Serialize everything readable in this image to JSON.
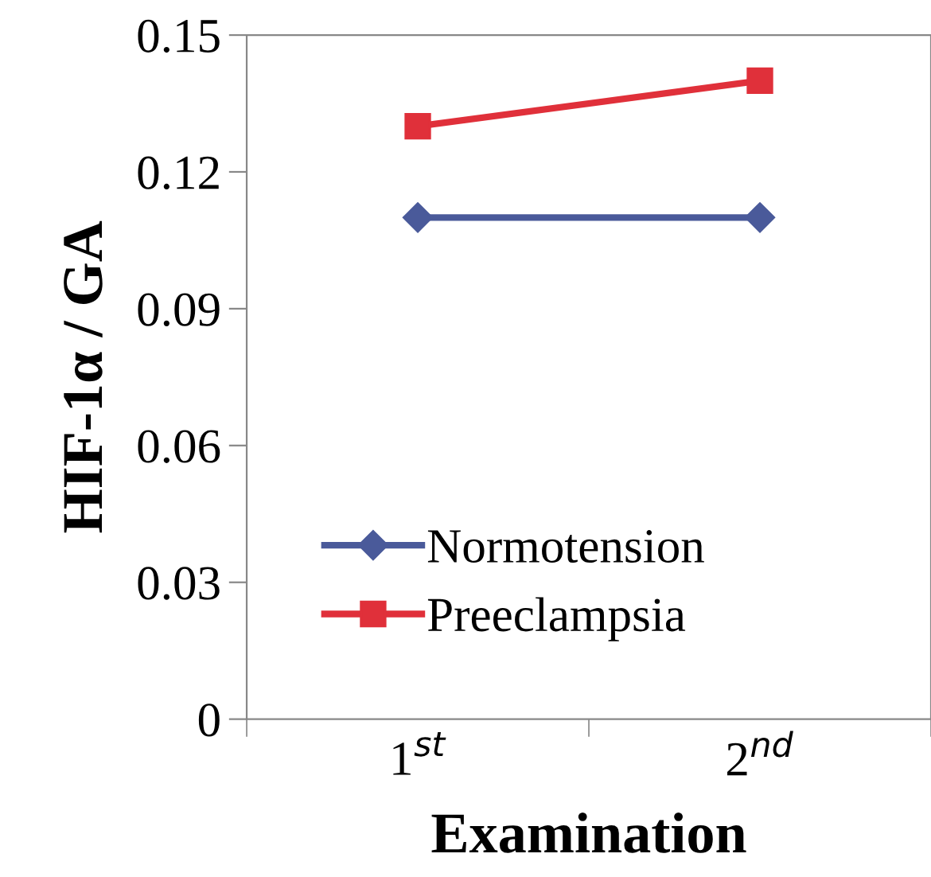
{
  "chart_data": {
    "type": "line",
    "xlabel": "Examination",
    "ylabel": "HIF-1α / GA",
    "categories": [
      "1$^{st}$",
      "2$^{nd}$"
    ],
    "series": [
      {
        "name": "Normotension",
        "color": "#4a5a9a",
        "marker": "diamond",
        "values": [
          0.11,
          0.11
        ]
      },
      {
        "name": "Preeclampsia",
        "color": "#e0303a",
        "marker": "square",
        "values": [
          0.13,
          0.14
        ]
      }
    ],
    "ylim": [
      0,
      0.15
    ],
    "yticks": [
      {
        "value": 0,
        "label": "0"
      },
      0.03,
      0.06,
      0.09,
      0.12,
      0.15
    ],
    "grid": false,
    "legend": "lower left",
    "line_style": "solid"
  }
}
